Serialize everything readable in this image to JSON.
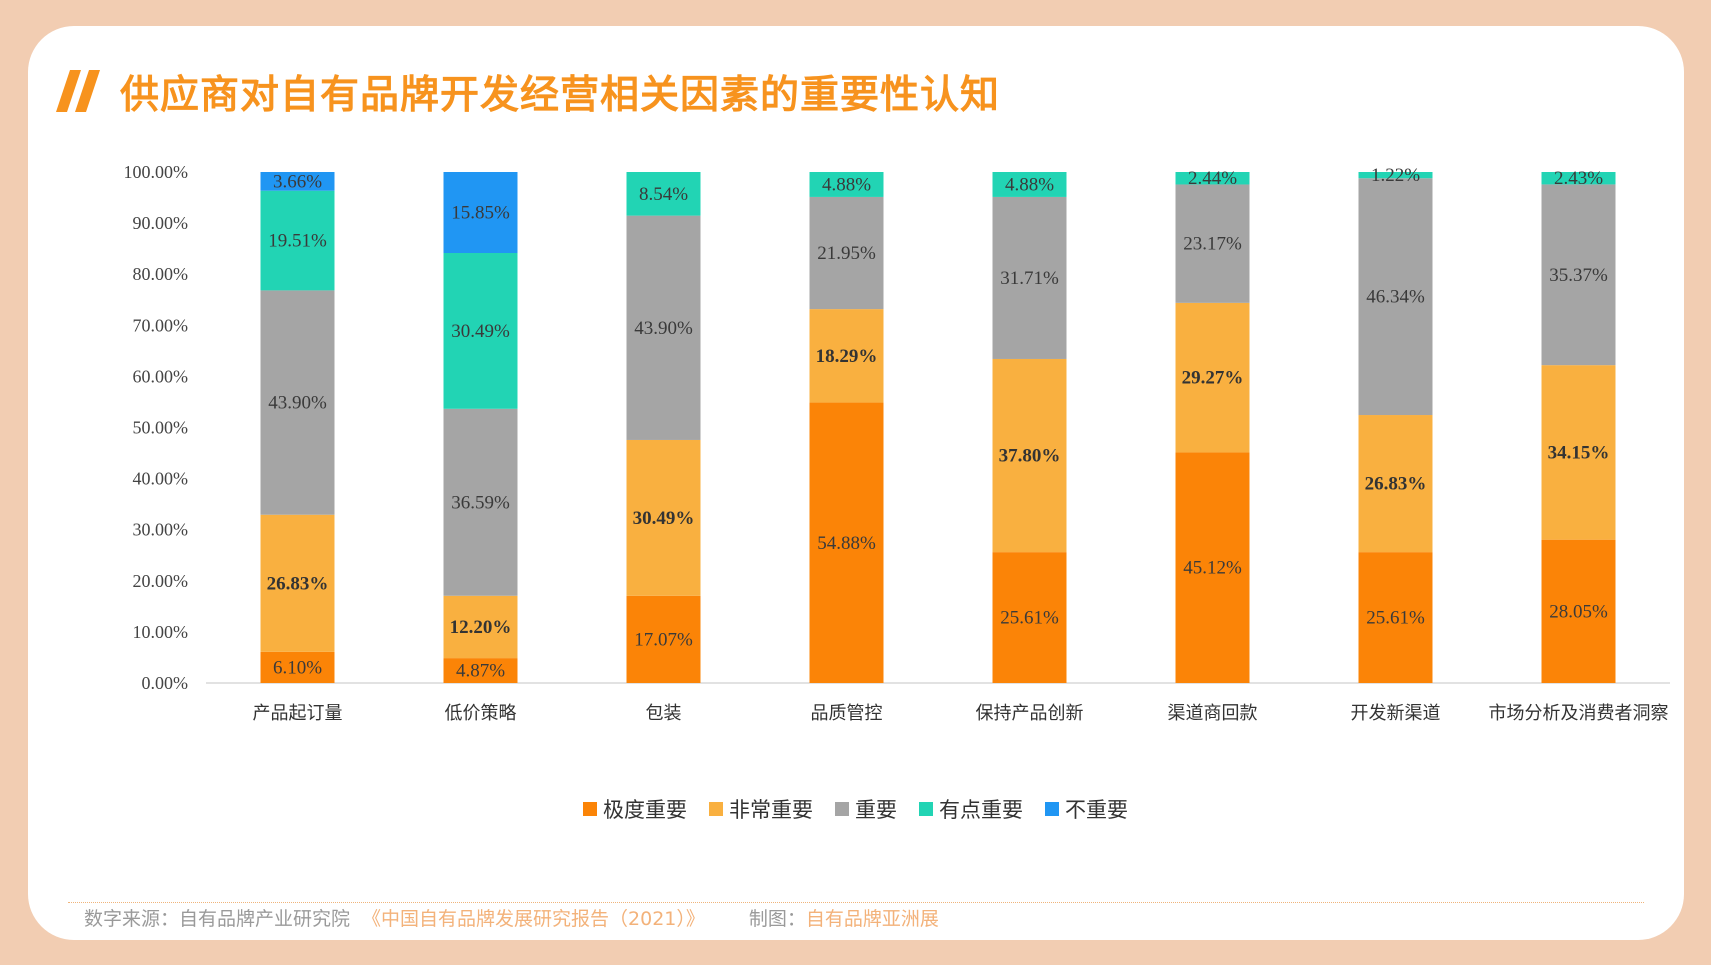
{
  "page": {
    "title": "供应商对自有品牌开发经营相关因素的重要性认知",
    "footer": {
      "source_label": "数字来源：",
      "source_org": "自有品牌产业研究院",
      "source_report": "《中国自有品牌发展研究报告（2021）》",
      "credit_label": "制图：",
      "credit_org": "自有品牌亚洲展"
    }
  },
  "chart_data": {
    "type": "bar",
    "stacked": true,
    "categories": [
      "产品起订量",
      "低价策略",
      "包装",
      "品质管控",
      "保持产品创新",
      "渠道商回款",
      "开发新渠道",
      "市场分析及消费者洞察"
    ],
    "series": [
      {
        "name": "极度重要",
        "color": "#fb8407",
        "values": [
          6.1,
          4.87,
          17.07,
          54.88,
          25.61,
          45.12,
          25.61,
          28.05
        ]
      },
      {
        "name": "非常重要",
        "color": "#f9b040",
        "values": [
          26.83,
          12.2,
          30.49,
          18.29,
          37.8,
          29.27,
          26.83,
          34.15
        ]
      },
      {
        "name": "重要",
        "color": "#a5a5a5",
        "values": [
          43.9,
          36.59,
          43.9,
          21.95,
          31.71,
          23.17,
          46.34,
          35.37
        ]
      },
      {
        "name": "有点重要",
        "color": "#22d4b4",
        "values": [
          19.51,
          30.49,
          8.54,
          4.88,
          4.88,
          2.44,
          1.22,
          2.43
        ]
      },
      {
        "name": "不重要",
        "color": "#2096f3",
        "values": [
          3.66,
          15.85,
          0,
          0,
          0,
          0,
          0,
          0
        ]
      }
    ],
    "data_labels": [
      [
        "6.10%",
        "4.87%",
        "17.07%",
        "54.88%",
        "25.61%",
        "45.12%",
        "25.61%",
        "28.05%"
      ],
      [
        "26.83%",
        "12.20%",
        "30.49%",
        "18.29%",
        "37.80%",
        "29.27%",
        "26.83%",
        "34.15%"
      ],
      [
        "43.90%",
        "36.59%",
        "43.90%",
        "21.95%",
        "31.71%",
        "23.17%",
        "46.34%",
        "35.37%"
      ],
      [
        "19.51%",
        "30.49%",
        "8.54%",
        "4.88%",
        "4.88%",
        "2.44%",
        "1.22%",
        "2.43%"
      ],
      [
        "3.66%",
        "15.85%",
        "",
        "",
        "",
        "",
        "",
        ""
      ]
    ],
    "y_ticks": [
      "0.00%",
      "10.00%",
      "20.00%",
      "30.00%",
      "40.00%",
      "50.00%",
      "60.00%",
      "70.00%",
      "80.00%",
      "90.00%",
      "100.00%"
    ],
    "ylim": [
      0,
      100
    ],
    "grid": false,
    "legend_position": "bottom"
  }
}
